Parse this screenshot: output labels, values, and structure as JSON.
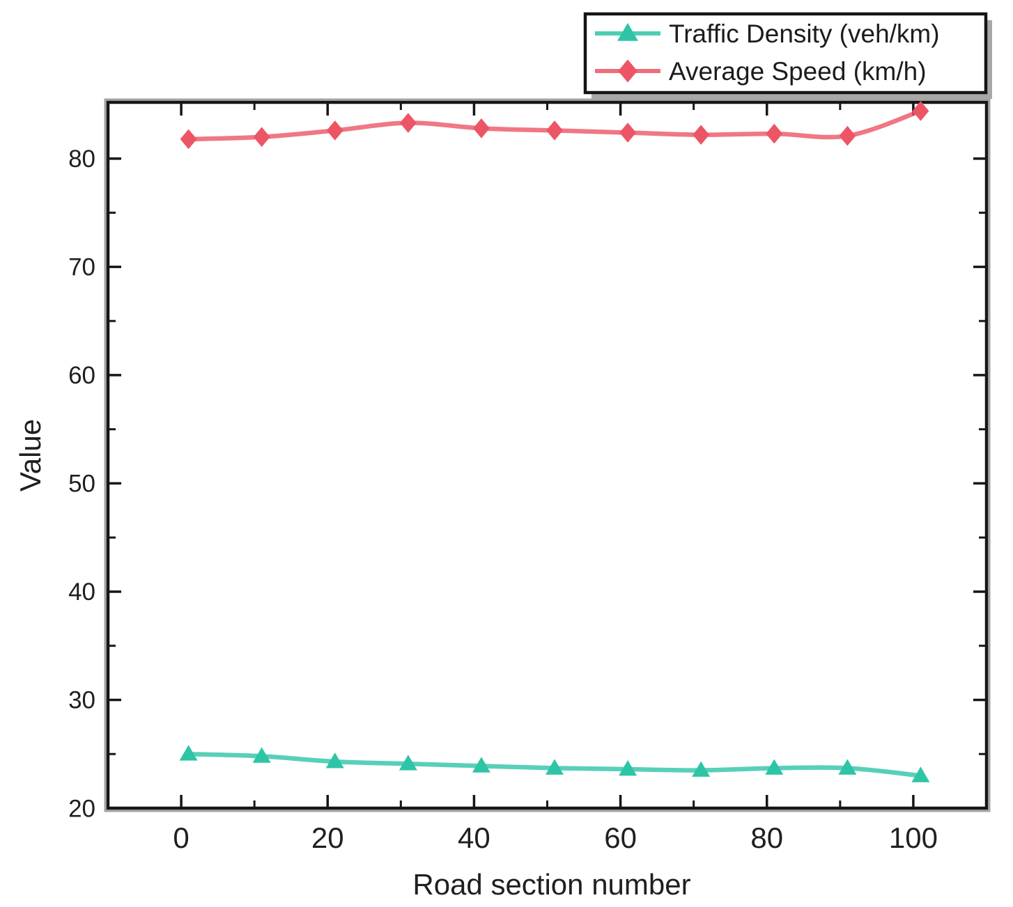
{
  "figure": {
    "background": "#ffffff",
    "axis_color": "#161616",
    "tick_label_color": "#1f1f1f"
  },
  "chart_data": {
    "type": "line",
    "title": "",
    "xlabel": "Road section number",
    "ylabel": "Value",
    "x": [
      1,
      11,
      21,
      31,
      41,
      51,
      61,
      71,
      81,
      91,
      101
    ],
    "series": [
      {
        "name": "Traffic Density (veh/km)",
        "marker": "triangle",
        "color": "#2ec4a6",
        "values": [
          25.0,
          24.8,
          24.3,
          24.1,
          23.9,
          23.7,
          23.6,
          23.5,
          23.7,
          23.7,
          23.0
        ]
      },
      {
        "name": "Average Speed (km/h)",
        "marker": "diamond",
        "color": "#ec5565",
        "values": [
          81.8,
          82.0,
          82.6,
          83.3,
          82.8,
          82.6,
          82.4,
          82.2,
          82.3,
          82.1,
          84.4
        ]
      }
    ],
    "xlim": [
      -10,
      110
    ],
    "ylim": [
      20,
      85.2
    ],
    "x_major_ticks": [
      0,
      20,
      40,
      60,
      80,
      100
    ],
    "x_minor_ticks": [
      10,
      30,
      50,
      70,
      90
    ],
    "y_major_ticks": [
      20,
      30,
      40,
      50,
      60,
      70,
      80
    ],
    "y_minor_ticks": [
      25,
      35,
      45,
      55,
      65,
      75
    ],
    "grid": false,
    "legend": {
      "position": "top-right",
      "background": "#ffffff",
      "border_color": "#151515",
      "shadow_color": "#a8a8a8"
    }
  }
}
